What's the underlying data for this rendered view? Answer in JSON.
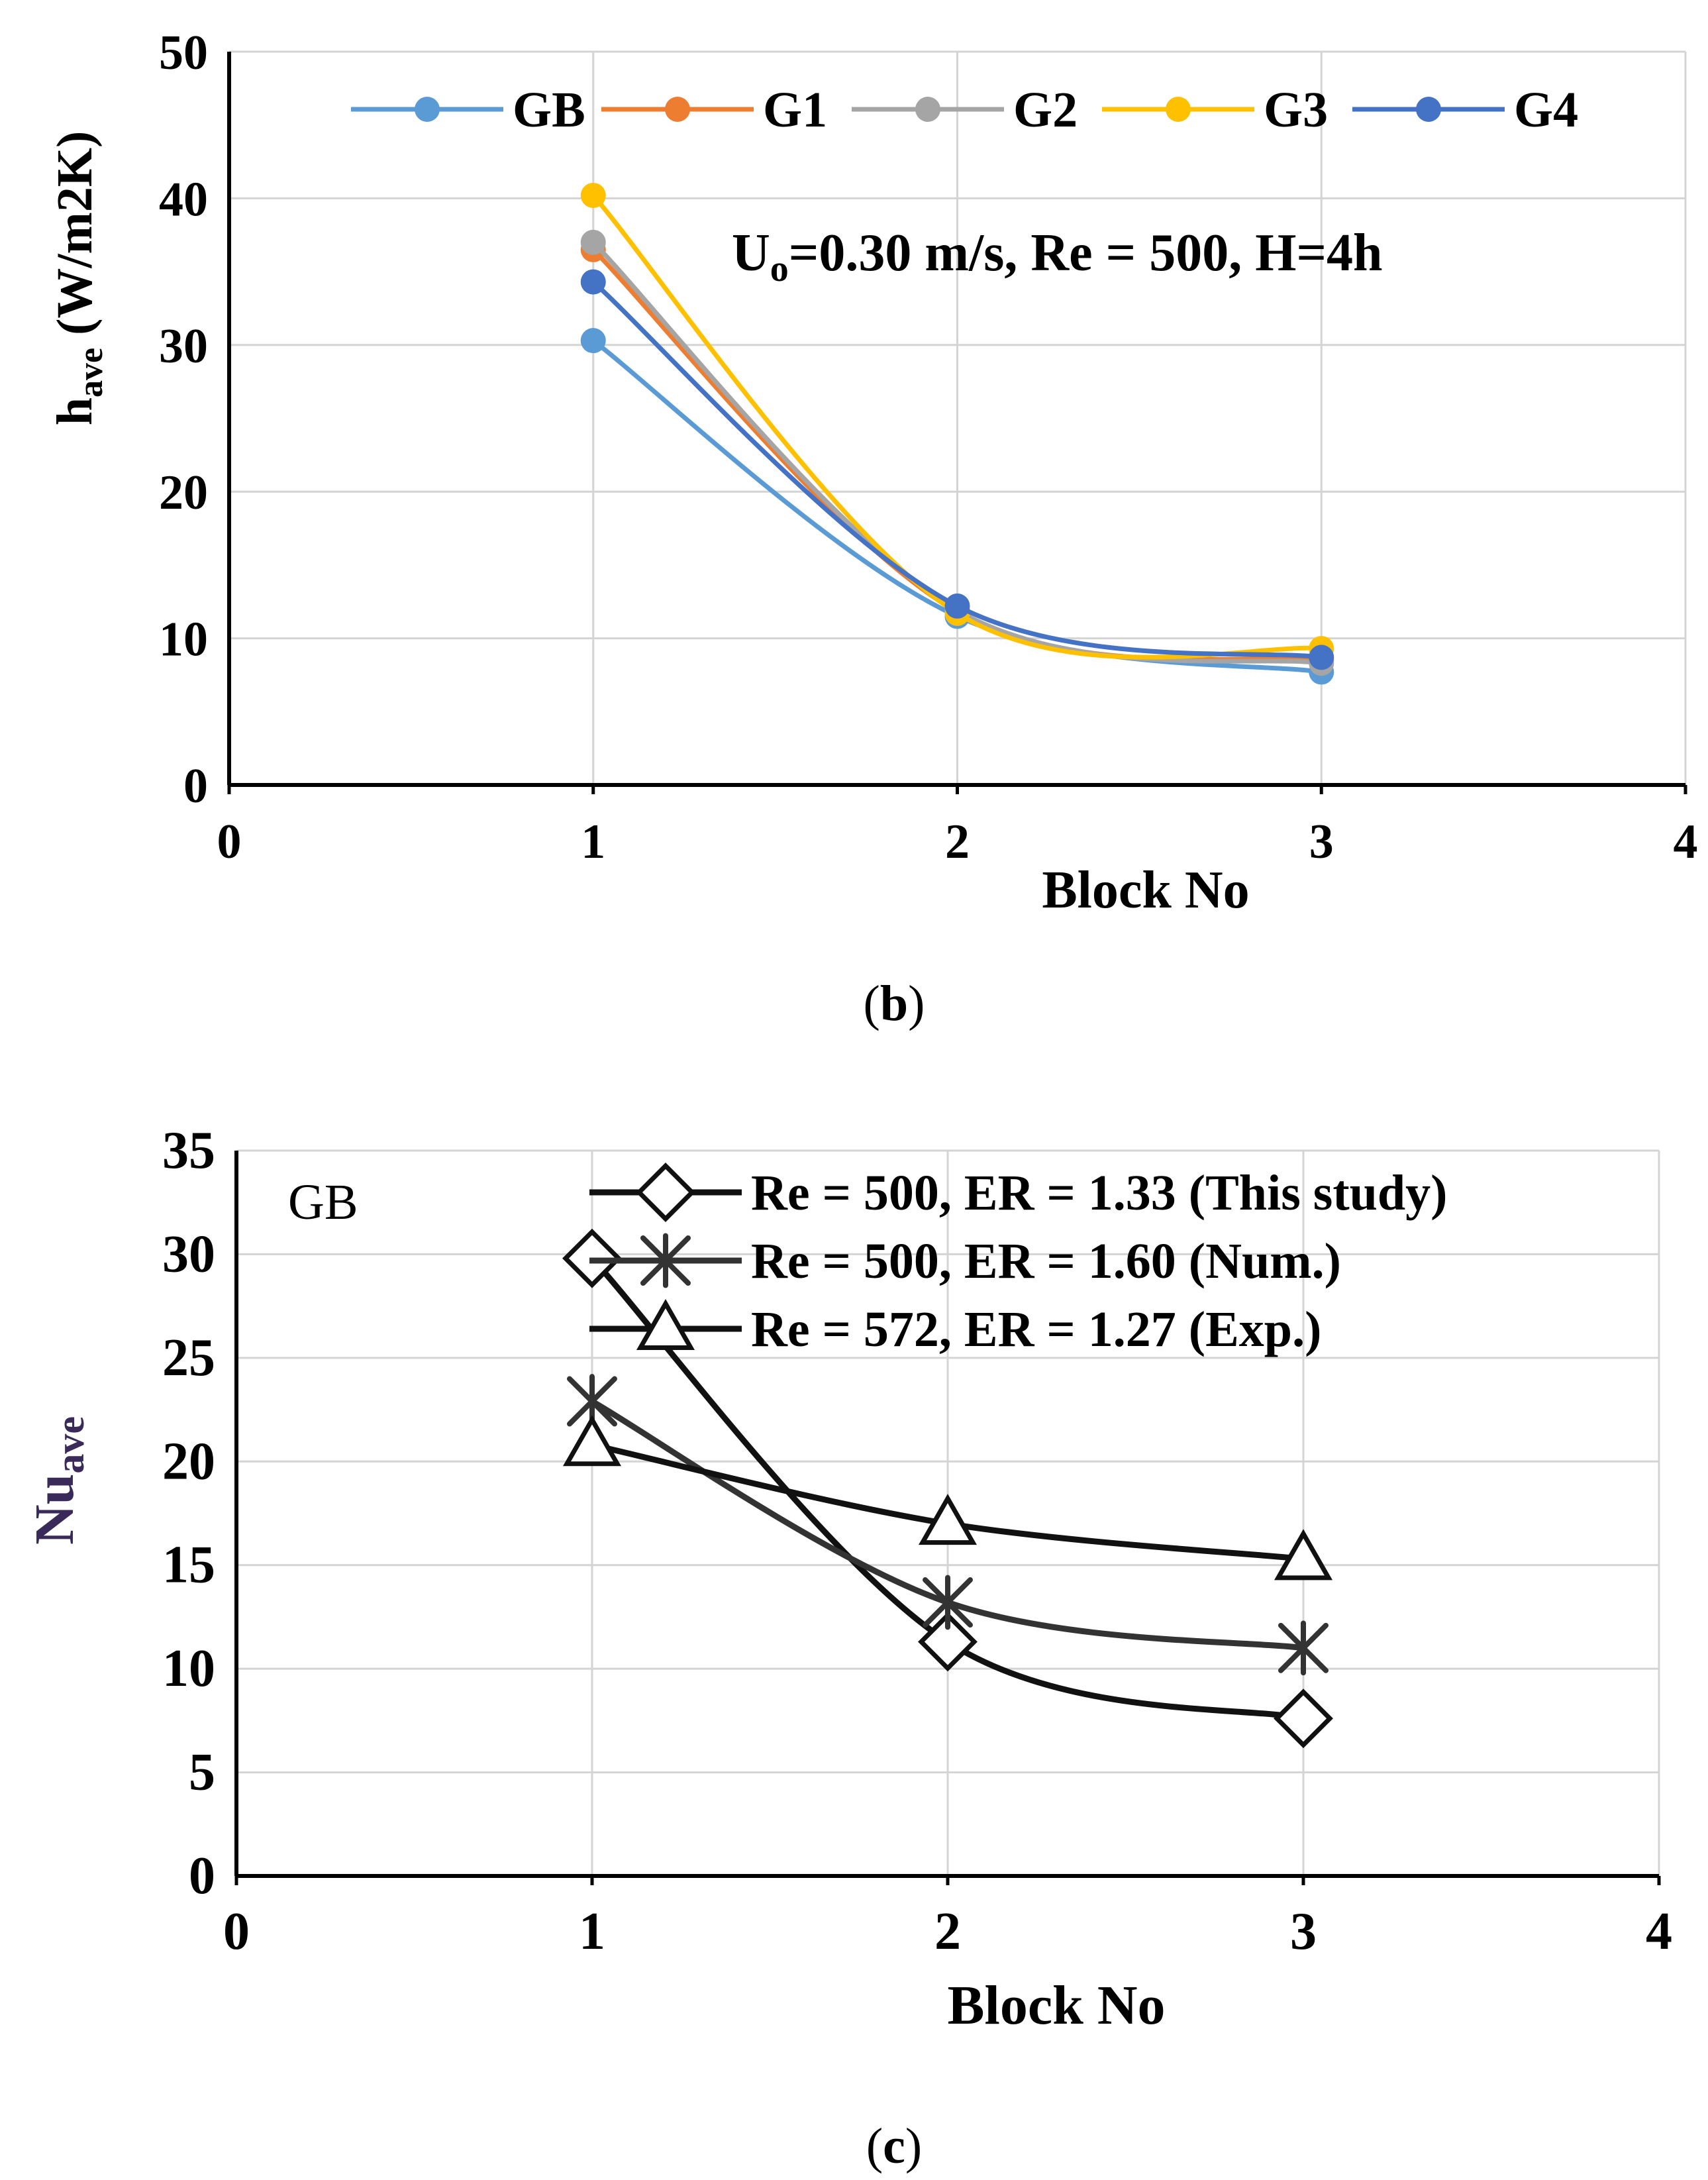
{
  "chart_data": [
    {
      "type": "line",
      "panel_label": "b",
      "xlabel": "Block No",
      "ylabel": "h",
      "ylabel_sub": "ave",
      "ylabel_units": " (W/m2K)",
      "annotation": {
        "prefix": "U",
        "sub": "o",
        "rest": "=0.30 m/s, Re = 500, H=4h"
      },
      "xlim": [
        0,
        4
      ],
      "ylim": [
        0,
        50
      ],
      "xticks": [
        "0",
        "1",
        "2",
        "3",
        "4"
      ],
      "yticks": [
        "0",
        "10",
        "20",
        "30",
        "40",
        "50"
      ],
      "grid": true,
      "legend_position": "top",
      "x": [
        1,
        2,
        3
      ],
      "series": [
        {
          "name": "GB",
          "color": "#5B9BD5",
          "values": [
            30.3,
            11.5,
            7.7
          ]
        },
        {
          "name": "G1",
          "color": "#ED7D31",
          "values": [
            36.5,
            11.8,
            8.5
          ]
        },
        {
          "name": "G2",
          "color": "#A5A5A5",
          "values": [
            37.0,
            11.9,
            8.3
          ]
        },
        {
          "name": "G3",
          "color": "#FFC000",
          "values": [
            40.2,
            11.7,
            9.3
          ]
        },
        {
          "name": "G4",
          "color": "#4472C4",
          "values": [
            34.3,
            12.2,
            8.7
          ]
        }
      ]
    },
    {
      "type": "line",
      "panel_label": "c",
      "xlabel": "Block No",
      "ylabel": "Nu",
      "ylabel_sub": "ave",
      "annotation": {
        "text": "GB"
      },
      "xlim": [
        0,
        4
      ],
      "ylim": [
        0,
        35
      ],
      "xticks": [
        "0",
        "1",
        "2",
        "3",
        "4"
      ],
      "yticks": [
        "0",
        "5",
        "10",
        "15",
        "20",
        "25",
        "30",
        "35"
      ],
      "grid": true,
      "legend_position": "top-right",
      "x": [
        1,
        2,
        3
      ],
      "series": [
        {
          "name": "Re = 500, ER = 1.33 (This study)",
          "marker": "diamond",
          "color": "#111111",
          "values": [
            29.8,
            11.3,
            7.6
          ]
        },
        {
          "name": "Re = 500, ER = 1.60 (Num.)",
          "marker": "star",
          "color": "#333333",
          "values": [
            22.9,
            13.2,
            11.0
          ]
        },
        {
          "name": "Re = 572, ER = 1.27 (Exp.)",
          "marker": "triangle",
          "color": "#111111",
          "values": [
            20.8,
            17.0,
            15.3
          ]
        }
      ]
    }
  ]
}
